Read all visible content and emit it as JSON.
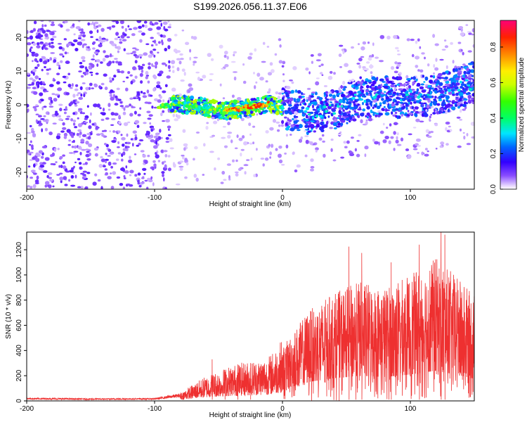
{
  "title": "S199.2026.056.11.37.E06",
  "chart_data": [
    {
      "type": "heatmap",
      "xlabel": "Height of straight line (km)",
      "ylabel": "Frequency (Hz)",
      "xlim": [
        -200,
        150
      ],
      "ylim": [
        -25,
        25
      ],
      "xticks": [
        "-200",
        "-100",
        "0",
        "100"
      ],
      "yticks": [
        "20",
        "10",
        "0",
        "-10",
        "-20"
      ],
      "xtick_values": [
        -200,
        -100,
        0,
        100
      ],
      "ytick_values": [
        20,
        10,
        0,
        -10,
        -20
      ],
      "colorbar": {
        "label": "Normalized spectral amplitude",
        "range": [
          0,
          0.95
        ],
        "ticks": [
          "0.0",
          "0.2",
          "0.4",
          "0.6",
          "0.8"
        ],
        "tick_values": [
          0.0,
          0.2,
          0.4,
          0.6,
          0.8
        ]
      },
      "ridge": {
        "x": [
          -97,
          -80,
          -60,
          -45,
          -35,
          -20,
          -10,
          0,
          20,
          40,
          60,
          80,
          100,
          120,
          140,
          148
        ],
        "y": [
          -0.5,
          0.3,
          -0.8,
          -2.0,
          -1.2,
          -0.5,
          0.4,
          -1.0,
          -2.5,
          -1.5,
          2.0,
          2.5,
          2.0,
          3.0,
          5.5,
          6.5
        ],
        "peak_amplitude": 0.9
      }
    },
    {
      "type": "line",
      "xlabel": "Height of straight line (km)",
      "ylabel": "SNR (10 * v/v)",
      "xlim": [
        -200,
        150
      ],
      "ylim": [
        0,
        1340
      ],
      "xticks": [
        "-200",
        "-100",
        "0",
        "100"
      ],
      "yticks": [
        "0",
        "200",
        "400",
        "600",
        "800",
        "1000",
        "1200"
      ],
      "xtick_values": [
        -200,
        -100,
        0,
        100
      ],
      "ytick_values": [
        0,
        200,
        400,
        600,
        800,
        1000,
        1200
      ],
      "series": [
        {
          "name": "SNR",
          "color": "#ee3030",
          "envelope_x": [
            -200,
            -150,
            -100,
            -80,
            -60,
            -40,
            -20,
            -10,
            0,
            10,
            20,
            40,
            60,
            80,
            100,
            120,
            140,
            148
          ],
          "envelope_y": [
            25,
            20,
            22,
            60,
            180,
            260,
            300,
            330,
            450,
            600,
            750,
            900,
            1000,
            950,
            1050,
            1200,
            1000,
            900
          ],
          "spikes": [
            [
              -55,
              330
            ],
            [
              -45,
              230
            ],
            [
              -35,
              290
            ],
            [
              -25,
              300
            ],
            [
              52,
              1225
            ],
            [
              62,
              1175
            ],
            [
              124,
              1340
            ],
            [
              127,
              1320
            ],
            [
              107,
              1240
            ],
            [
              85,
              1100
            ]
          ]
        }
      ]
    }
  ]
}
